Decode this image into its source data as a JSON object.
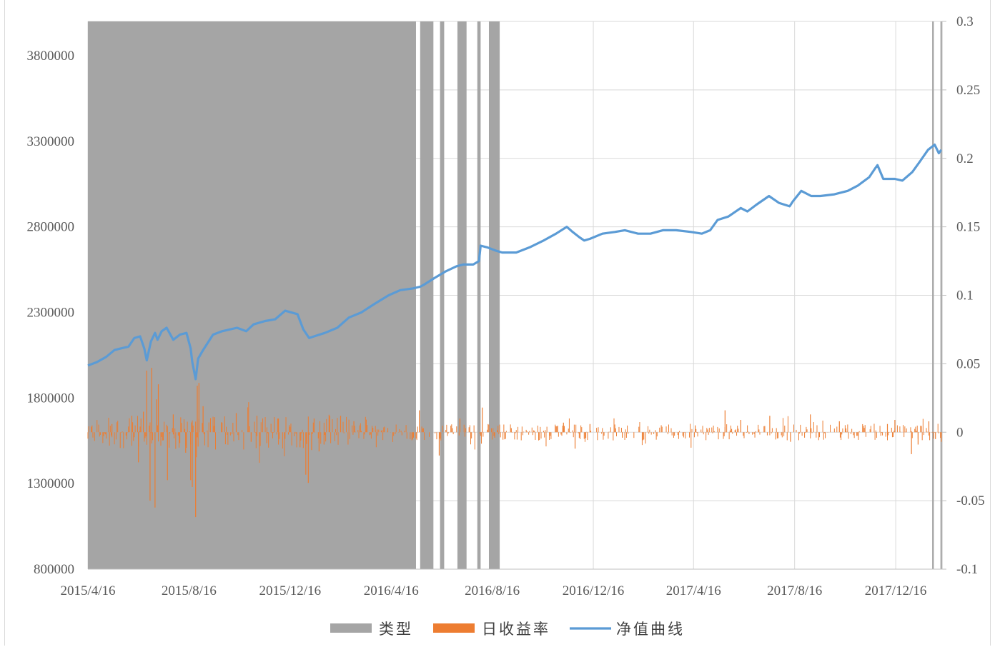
{
  "chart_data": {
    "type": "combo",
    "title": "",
    "xlabel": "",
    "ylabel": "",
    "x_range": [
      "2015-04-16",
      "2018-02-10"
    ],
    "x_tick_labels": [
      "2015/4/16",
      "2015/8/16",
      "2015/12/16",
      "2016/4/16",
      "2016/8/16",
      "2016/12/16",
      "2017/4/16",
      "2017/8/16",
      "2017/12/16"
    ],
    "x_tick_dates": [
      "2015-04-16",
      "2015-08-16",
      "2015-12-16",
      "2016-04-16",
      "2016-08-16",
      "2016-12-16",
      "2017-04-16",
      "2017-08-16",
      "2017-12-16"
    ],
    "y_left": {
      "min": 800000,
      "max": 4000000,
      "ticks": [
        800000,
        1300000,
        1800000,
        2300000,
        2800000,
        3300000,
        3800000
      ],
      "tick_labels": [
        "800000",
        "1300000",
        "1800000",
        "2300000",
        "2800000",
        "3300000",
        "3800000"
      ]
    },
    "y_right": {
      "min": -0.1,
      "max": 0.3,
      "ticks": [
        -0.1,
        -0.05,
        0,
        0.05,
        0.1,
        0.15,
        0.2,
        0.25,
        0.3
      ],
      "tick_labels": [
        "-0.1",
        "-0.05",
        "0",
        "0.05",
        "0.1",
        "0.15",
        "0.2",
        "0.25",
        "0.3"
      ]
    },
    "grid": true,
    "legend_position": "bottom",
    "series": [
      {
        "name": "类型",
        "type": "area",
        "axis": "left",
        "color": "#a5a5a5",
        "periods": [
          [
            "2015-04-16",
            "2016-05-16"
          ],
          [
            "2016-05-21",
            "2016-06-06"
          ],
          [
            "2016-06-14",
            "2016-06-19"
          ],
          [
            "2016-07-05",
            "2016-07-16"
          ],
          [
            "2016-07-29",
            "2016-08-02"
          ],
          [
            "2016-08-12",
            "2016-08-25"
          ],
          [
            "2018-01-29",
            "2018-01-31"
          ],
          [
            "2018-02-08",
            "2018-02-10"
          ]
        ]
      },
      {
        "name": "日收益率",
        "type": "bar",
        "axis": "right",
        "color": "#ed7d31",
        "x": [
          "2015-04-20",
          "2015-05-15",
          "2015-06-08",
          "2015-06-16",
          "2015-06-22",
          "2015-06-26",
          "2015-06-30",
          "2015-07-02",
          "2015-07-06",
          "2015-07-08",
          "2015-07-10",
          "2015-07-21",
          "2015-07-28",
          "2015-08-12",
          "2015-08-18",
          "2015-08-20",
          "2015-08-24",
          "2015-08-26",
          "2015-08-28",
          "2015-09-02",
          "2015-09-16",
          "2015-10-12",
          "2015-10-30",
          "2015-11-06",
          "2015-11-18",
          "2015-12-02",
          "2015-12-28",
          "2016-01-04",
          "2016-01-07",
          "2016-01-11",
          "2016-01-14",
          "2016-01-20",
          "2016-01-26",
          "2016-02-15",
          "2016-03-02",
          "2016-03-30",
          "2016-05-20",
          "2016-06-13",
          "2016-07-08",
          "2016-08-04",
          "2016-08-19",
          "2016-09-08",
          "2016-11-10",
          "2016-11-24",
          "2016-12-12",
          "2017-01-20",
          "2017-04-18",
          "2017-05-24",
          "2017-06-12",
          "2017-07-17",
          "2017-08-11",
          "2017-09-04",
          "2017-10-09",
          "2017-12-06",
          "2017-12-15",
          "2018-01-04",
          "2018-01-12",
          "2018-01-25",
          "2018-02-02",
          "2018-02-09"
        ],
        "values": [
          0.004,
          0.006,
          0.012,
          -0.022,
          0.015,
          0.045,
          -0.05,
          0.047,
          -0.055,
          0.024,
          0.035,
          -0.035,
          0.013,
          -0.015,
          -0.035,
          -0.04,
          -0.062,
          0.034,
          0.036,
          0.019,
          0.011,
          0.014,
          -0.007,
          0.012,
          -0.008,
          0.01,
          -0.011,
          -0.031,
          -0.037,
          -0.013,
          0.01,
          -0.014,
          -0.009,
          0.012,
          0.008,
          0.002,
          0.016,
          -0.017,
          0.01,
          0.018,
          -0.004,
          0.003,
          0.007,
          -0.012,
          0.006,
          -0.004,
          0.005,
          0.016,
          0.009,
          0.012,
          -0.007,
          0.013,
          0.008,
          0.006,
          0.009,
          -0.016,
          -0.009,
          0.008,
          -0.005,
          -0.007
        ]
      },
      {
        "name": "净值曲线",
        "type": "line",
        "axis": "left",
        "color": "#5b9bd5",
        "x": [
          "2015-04-16",
          "2015-04-27",
          "2015-05-08",
          "2015-05-18",
          "2015-05-26",
          "2015-06-04",
          "2015-06-11",
          "2015-06-18",
          "2015-06-23",
          "2015-06-26",
          "2015-07-01",
          "2015-07-06",
          "2015-07-09",
          "2015-07-14",
          "2015-07-20",
          "2015-07-28",
          "2015-08-05",
          "2015-08-13",
          "2015-08-18",
          "2015-08-20",
          "2015-08-24",
          "2015-08-27",
          "2015-09-02",
          "2015-09-14",
          "2015-09-25",
          "2015-10-13",
          "2015-10-24",
          "2015-11-02",
          "2015-11-16",
          "2015-11-28",
          "2015-12-10",
          "2015-12-25",
          "2016-01-01",
          "2016-01-08",
          "2016-01-14",
          "2016-01-27",
          "2016-02-11",
          "2016-02-25",
          "2016-03-11",
          "2016-03-27",
          "2016-04-13",
          "2016-04-27",
          "2016-05-12",
          "2016-05-21",
          "2016-05-25",
          "2016-06-07",
          "2016-06-21",
          "2016-07-04",
          "2016-07-12",
          "2016-07-24",
          "2016-07-31",
          "2016-08-02",
          "2016-08-10",
          "2016-08-21",
          "2016-08-28",
          "2016-09-14",
          "2016-09-30",
          "2016-10-17",
          "2016-11-01",
          "2016-11-14",
          "2016-11-21",
          "2016-11-29",
          "2016-12-05",
          "2016-12-12",
          "2016-12-27",
          "2017-01-11",
          "2017-01-23",
          "2017-02-08",
          "2017-02-23",
          "2017-03-10",
          "2017-03-26",
          "2017-04-13",
          "2017-04-26",
          "2017-05-06",
          "2017-05-15",
          "2017-05-28",
          "2017-06-12",
          "2017-06-20",
          "2017-07-01",
          "2017-07-16",
          "2017-07-28",
          "2017-08-10",
          "2017-08-14",
          "2017-08-24",
          "2017-09-05",
          "2017-09-16",
          "2017-10-03",
          "2017-10-19",
          "2017-10-31",
          "2017-11-14",
          "2017-11-21",
          "2017-11-24",
          "2017-12-01",
          "2017-12-15",
          "2017-12-24",
          "2018-01-05",
          "2018-01-14",
          "2018-01-24",
          "2018-02-01",
          "2018-02-06",
          "2018-02-09"
        ],
        "values": [
          1990000,
          2010000,
          2040000,
          2080000,
          2090000,
          2100000,
          2150000,
          2160000,
          2090000,
          2020000,
          2130000,
          2180000,
          2140000,
          2190000,
          2210000,
          2140000,
          2170000,
          2180000,
          2090000,
          2010000,
          1910000,
          2030000,
          2080000,
          2170000,
          2190000,
          2210000,
          2190000,
          2230000,
          2250000,
          2260000,
          2310000,
          2290000,
          2200000,
          2150000,
          2160000,
          2180000,
          2210000,
          2270000,
          2300000,
          2350000,
          2400000,
          2430000,
          2440000,
          2450000,
          2460000,
          2500000,
          2540000,
          2570000,
          2580000,
          2580000,
          2600000,
          2690000,
          2680000,
          2660000,
          2650000,
          2650000,
          2680000,
          2720000,
          2760000,
          2800000,
          2770000,
          2740000,
          2720000,
          2730000,
          2760000,
          2770000,
          2780000,
          2760000,
          2760000,
          2780000,
          2780000,
          2770000,
          2760000,
          2780000,
          2840000,
          2860000,
          2910000,
          2890000,
          2930000,
          2980000,
          2940000,
          2920000,
          2950000,
          3010000,
          2980000,
          2980000,
          2990000,
          3010000,
          3040000,
          3090000,
          3140000,
          3160000,
          3080000,
          3080000,
          3070000,
          3120000,
          3180000,
          3250000,
          3280000,
          3230000,
          3250000
        ]
      }
    ]
  }
}
